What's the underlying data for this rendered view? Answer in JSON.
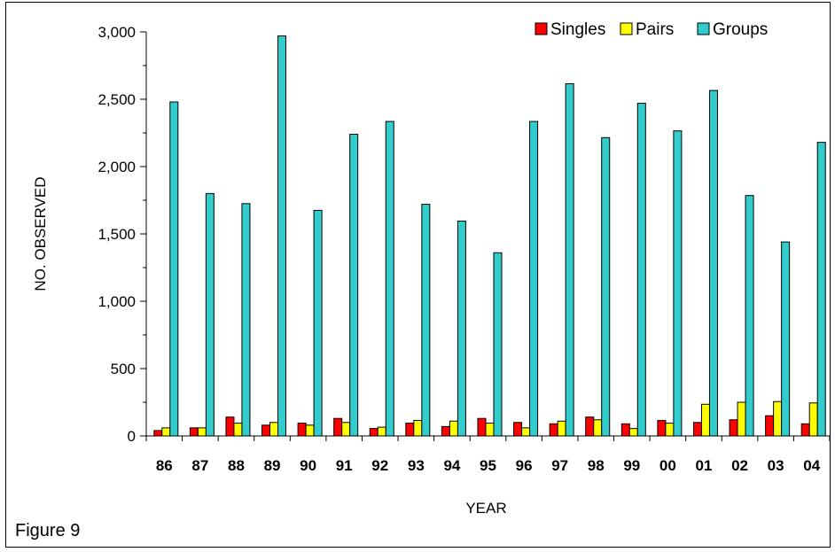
{
  "figure_caption": "Figure 9",
  "chart_data": {
    "type": "bar",
    "title": "",
    "xlabel": "YEAR",
    "ylabel": "NO. OBSERVED",
    "ylim": [
      0,
      3000
    ],
    "yticks": [
      0,
      500,
      1000,
      1500,
      2000,
      2500,
      3000
    ],
    "ytick_labels": [
      "0",
      "500",
      "1,000",
      "1,500",
      "2,000",
      "2,500",
      "3,000"
    ],
    "legend_position": "top-right",
    "grid": false,
    "categories": [
      "86",
      "87",
      "88",
      "89",
      "90",
      "91",
      "92",
      "93",
      "94",
      "95",
      "96",
      "97",
      "98",
      "99",
      "00",
      "01",
      "02",
      "03",
      "04"
    ],
    "series": [
      {
        "name": "Singles",
        "color": "#ff0000",
        "values": [
          40,
          60,
          140,
          80,
          95,
          130,
          55,
          95,
          70,
          130,
          100,
          90,
          140,
          90,
          115,
          100,
          120,
          150,
          90
        ]
      },
      {
        "name": "Pairs",
        "color": "#ffff00",
        "values": [
          60,
          60,
          95,
          100,
          80,
          100,
          65,
          115,
          110,
          95,
          60,
          110,
          120,
          55,
          95,
          235,
          250,
          255,
          245
        ]
      },
      {
        "name": "Groups",
        "color": "#33cccc",
        "values": [
          2480,
          1800,
          1725,
          2970,
          1675,
          2240,
          2335,
          1720,
          1595,
          1360,
          2335,
          2615,
          2215,
          2470,
          2265,
          2565,
          1785,
          1440,
          2180
        ]
      }
    ]
  }
}
